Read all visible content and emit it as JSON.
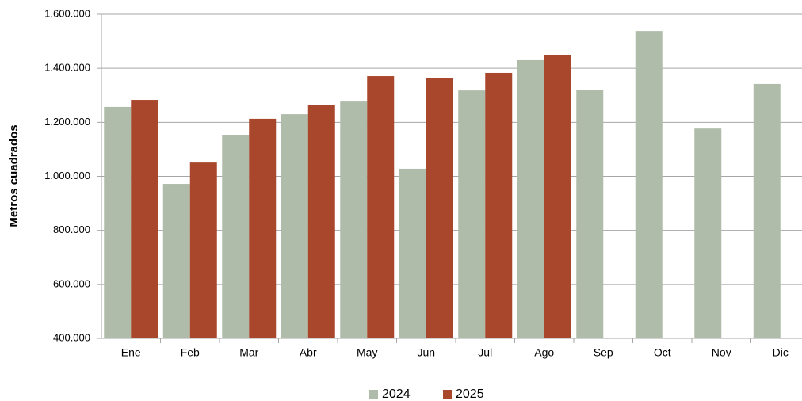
{
  "chart_data": {
    "type": "bar",
    "y_label": "Metros cuadrados",
    "categories": [
      "Ene",
      "Feb",
      "Mar",
      "Abr",
      "May",
      "Jun",
      "Jul",
      "Ago",
      "Sep",
      "Oct",
      "Nov",
      "Dic"
    ],
    "series": [
      {
        "name": "2024",
        "color": "#b0bcaa",
        "values": [
          1257000,
          972000,
          1154000,
          1230000,
          1277000,
          1028000,
          1318000,
          1430000,
          1321000,
          1538000,
          1177000,
          1342000
        ]
      },
      {
        "name": "2025",
        "color": "#a8472b",
        "values": [
          1283000,
          1051000,
          1213000,
          1265000,
          1371000,
          1365000,
          1383000,
          1450000,
          null,
          null,
          null,
          null
        ]
      }
    ],
    "ylim": [
      400000,
      1600000
    ],
    "yticks": [
      {
        "value": 400000,
        "label": "400.000"
      },
      {
        "value": 600000,
        "label": "600.000"
      },
      {
        "value": 800000,
        "label": "800.000"
      },
      {
        "value": 1000000,
        "label": "1.000.000"
      },
      {
        "value": 1200000,
        "label": "1.200.000"
      },
      {
        "value": 1400000,
        "label": "1.400.000"
      },
      {
        "value": 1600000,
        "label": "1.600.000"
      }
    ],
    "grid": true,
    "legend": "bottom"
  }
}
